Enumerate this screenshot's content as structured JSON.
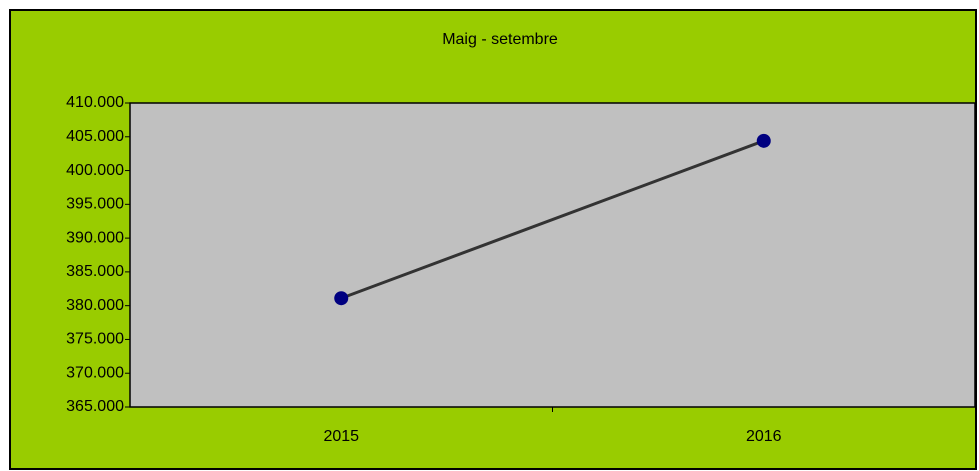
{
  "chart_data": {
    "type": "line",
    "title": "Maig - setembre",
    "categories": [
      "2015",
      "2016"
    ],
    "values": [
      381100,
      404400
    ],
    "line_color": "#333333",
    "marker_color": "#000080",
    "background": "#99cc00",
    "plot_background": "#c0c0c0",
    "ylim": [
      365000,
      410000
    ],
    "yticks": [
      {
        "value": 365000,
        "label": "365.000"
      },
      {
        "value": 370000,
        "label": "370.000"
      },
      {
        "value": 375000,
        "label": "375.000"
      },
      {
        "value": 380000,
        "label": "380.000"
      },
      {
        "value": 385000,
        "label": "385.000"
      },
      {
        "value": 390000,
        "label": "390.000"
      },
      {
        "value": 395000,
        "label": "395.000"
      },
      {
        "value": 400000,
        "label": "400.000"
      },
      {
        "value": 405000,
        "label": "405.000"
      },
      {
        "value": 410000,
        "label": "410.000"
      }
    ],
    "grid": false
  }
}
